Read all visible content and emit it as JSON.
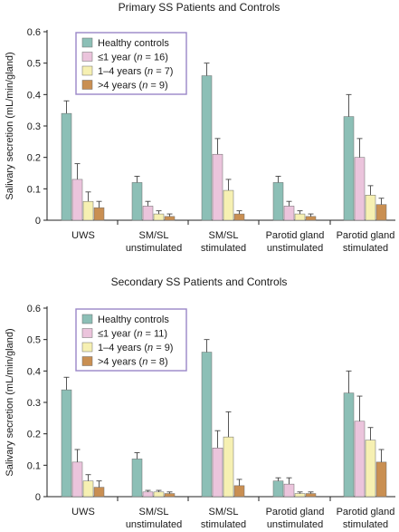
{
  "chart_data": [
    {
      "type": "bar",
      "title": "Primary SS Patients and Controls",
      "ylabel": "Salivary secretion (mL/min/gland)",
      "ylim": [
        0,
        0.6
      ],
      "yticks": [
        "0",
        "0.1",
        "0.2",
        "0.3",
        "0.4",
        "0.5",
        "0.6"
      ],
      "categories": [
        {
          "line1": "UWS",
          "line2": ""
        },
        {
          "line1": "SM/SL",
          "line2": "unstimulated"
        },
        {
          "line1": "SM/SL",
          "line2": "stimulated"
        },
        {
          "line1": "Parotid gland",
          "line2": "unstimulated"
        },
        {
          "line1": "Parotid gland",
          "line2": "stimulated"
        }
      ],
      "legend_position": "top-left",
      "series": [
        {
          "name": "Healthy controls",
          "name_pre": "",
          "name_n": "",
          "name_post": "",
          "color": "#8cbfb6",
          "values": [
            0.34,
            0.12,
            0.46,
            0.12,
            0.33
          ],
          "errors": [
            0.04,
            0.02,
            0.04,
            0.02,
            0.07
          ]
        },
        {
          "name": "",
          "name_pre": "≤1 year (",
          "name_n": "n",
          "name_post": " = 16)",
          "color": "#ebc4dc",
          "values": [
            0.13,
            0.045,
            0.21,
            0.045,
            0.2
          ],
          "errors": [
            0.05,
            0.015,
            0.05,
            0.015,
            0.06
          ]
        },
        {
          "name": "",
          "name_pre": "1–4 years (",
          "name_n": "n",
          "name_post": " = 7)",
          "color": "#f6f0b2",
          "values": [
            0.06,
            0.02,
            0.095,
            0.02,
            0.08
          ],
          "errors": [
            0.03,
            0.01,
            0.035,
            0.01,
            0.03
          ]
        },
        {
          "name": "",
          "name_pre": ">4 years (",
          "name_n": "n",
          "name_post": " = 9)",
          "color": "#c98f52",
          "values": [
            0.04,
            0.012,
            0.02,
            0.012,
            0.05
          ],
          "errors": [
            0.02,
            0.008,
            0.01,
            0.008,
            0.02
          ]
        }
      ]
    },
    {
      "type": "bar",
      "title": "Secondary SS Patients and Controls",
      "ylabel": "Salivary secretion (mL/min/gland)",
      "ylim": [
        0,
        0.6
      ],
      "yticks": [
        "0",
        "0.1",
        "0.2",
        "0.3",
        "0.4",
        "0.5",
        "0.6"
      ],
      "categories": [
        {
          "line1": "UWS",
          "line2": ""
        },
        {
          "line1": "SM/SL",
          "line2": "unstimulated"
        },
        {
          "line1": "SM/SL",
          "line2": "stimulated"
        },
        {
          "line1": "Parotid gland",
          "line2": "unstimulated"
        },
        {
          "line1": "Parotid gland",
          "line2": "stimulated"
        }
      ],
      "legend_position": "top-left",
      "series": [
        {
          "name": "Healthy controls",
          "name_pre": "",
          "name_n": "",
          "name_post": "",
          "color": "#8cbfb6",
          "values": [
            0.34,
            0.12,
            0.46,
            0.05,
            0.33
          ],
          "errors": [
            0.04,
            0.02,
            0.04,
            0.01,
            0.07
          ]
        },
        {
          "name": "",
          "name_pre": "≤1 year (",
          "name_n": "n",
          "name_post": " = 11)",
          "color": "#ebc4dc",
          "values": [
            0.11,
            0.015,
            0.155,
            0.04,
            0.24
          ],
          "errors": [
            0.04,
            0.005,
            0.055,
            0.02,
            0.08
          ]
        },
        {
          "name": "",
          "name_pre": "1–4 years (",
          "name_n": "n",
          "name_post": " = 9)",
          "color": "#f6f0b2",
          "values": [
            0.05,
            0.015,
            0.19,
            0.01,
            0.18
          ],
          "errors": [
            0.02,
            0.005,
            0.08,
            0.005,
            0.04
          ]
        },
        {
          "name": "",
          "name_pre": ">4 years (",
          "name_n": "n",
          "name_post": " = 8)",
          "color": "#c98f52",
          "values": [
            0.03,
            0.01,
            0.035,
            0.01,
            0.11
          ],
          "errors": [
            0.02,
            0.005,
            0.02,
            0.005,
            0.04
          ]
        }
      ]
    }
  ]
}
